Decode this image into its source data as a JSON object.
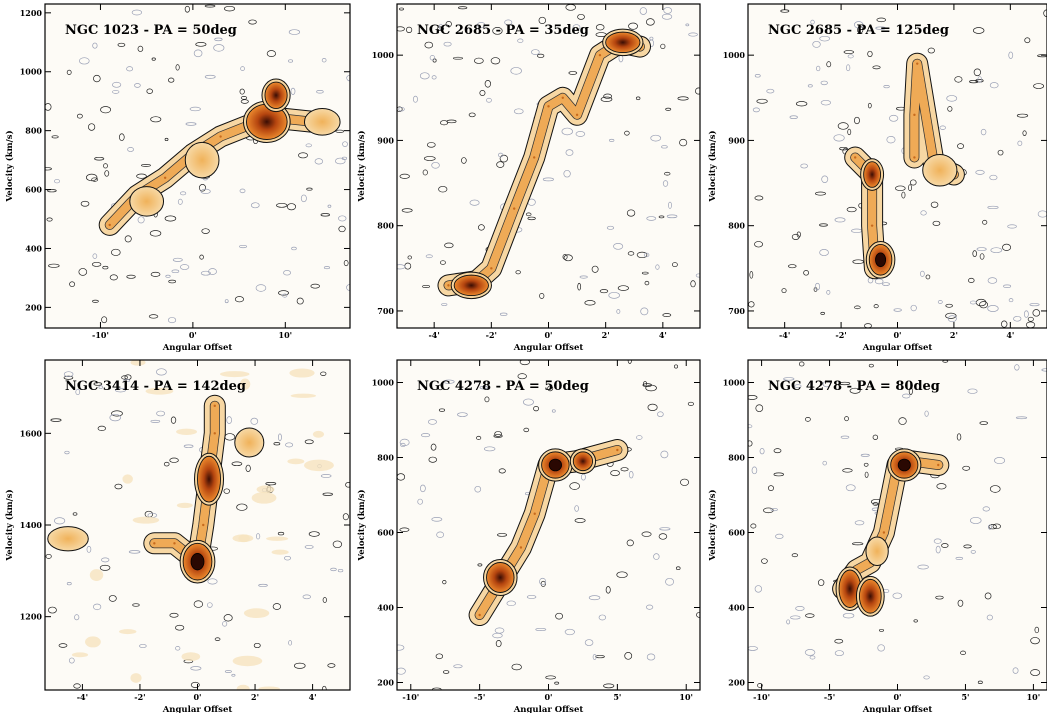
{
  "figure": {
    "panels": [
      {
        "title": "NGC 1023 - PA = 50deg",
        "xlabel": "Angular Offset",
        "ylabel": "Velocity (km/s)"
      },
      {
        "title": "NGC 2685 - PA = 35deg",
        "xlabel": "Angular Offset",
        "ylabel": "Velocity (km/s)"
      },
      {
        "title": "NGC 2685 - PA = 125deg",
        "xlabel": "Angular Offset",
        "ylabel": "Velocity (km/s)"
      },
      {
        "title": "NGC 3414 - PA = 142deg",
        "xlabel": "Angular Offset",
        "ylabel": "Velocity (km/s)"
      },
      {
        "title": "NGC 4278 - PA = 50deg",
        "xlabel": "Angular Offset",
        "ylabel": "Velocity (km/s)"
      },
      {
        "title": "NGC 4278 - PA = 80deg",
        "xlabel": "Angular Offset",
        "ylabel": "Velocity (km/s)"
      }
    ]
  },
  "chart_data": [
    {
      "type": "heatmap",
      "title": "NGC 1023 - PA = 50deg",
      "xlabel": "Angular Offset",
      "ylabel": "Velocity (km/s)",
      "xlim": [
        -16,
        17
      ],
      "ylim": [
        130,
        1230
      ],
      "xticks": [
        -10,
        0,
        10
      ],
      "xticklabels": [
        "-10'",
        "0'",
        "10'"
      ],
      "yticks": [
        200,
        400,
        600,
        800,
        1000,
        1200
      ],
      "yticklabels": [
        "200",
        "400",
        "600",
        "800",
        "1000",
        "1200"
      ],
      "ridge": [
        [
          -9,
          480
        ],
        [
          -6,
          580
        ],
        [
          -3,
          640
        ],
        [
          0,
          720
        ],
        [
          3,
          780
        ],
        [
          7,
          830
        ],
        [
          10,
          840
        ],
        [
          13,
          830
        ]
      ],
      "blobs": [
        [
          8,
          830,
          2.2,
          60,
          2
        ],
        [
          9,
          920,
          1.2,
          45,
          2
        ],
        [
          14,
          830,
          1.6,
          35,
          1
        ],
        [
          -5,
          560,
          1.5,
          40,
          1
        ],
        [
          1,
          700,
          1.5,
          50,
          1
        ]
      ]
    },
    {
      "type": "heatmap",
      "title": "NGC 2685 - PA = 35deg",
      "xlabel": "Angular Offset",
      "ylabel": "Velocity (km/s)",
      "xlim": [
        -5.3,
        5.3
      ],
      "ylim": [
        680,
        1060
      ],
      "xticks": [
        -4,
        -2,
        0,
        2,
        4
      ],
      "xticklabels": [
        "-4'",
        "-2'",
        "0'",
        "2'",
        "4'"
      ],
      "yticks": [
        700,
        800,
        900,
        1000
      ],
      "yticklabels": [
        "700",
        "800",
        "900",
        "1000"
      ],
      "ridge": [
        [
          -3.5,
          730
        ],
        [
          -2.5,
          735
        ],
        [
          -2,
          750
        ],
        [
          -1.2,
          820
        ],
        [
          -0.5,
          880
        ],
        [
          0,
          940
        ],
        [
          0.5,
          950
        ],
        [
          1,
          930
        ],
        [
          1.8,
          1000
        ],
        [
          2.5,
          1015
        ],
        [
          3.2,
          1010
        ]
      ],
      "blobs": [
        [
          -2.7,
          730,
          0.6,
          12,
          2
        ],
        [
          2.6,
          1015,
          0.6,
          12,
          2
        ]
      ]
    },
    {
      "type": "heatmap",
      "title": "NGC 2685 - PA = 125deg",
      "xlabel": "Angular Offset",
      "ylabel": "Velocity (km/s)",
      "xlim": [
        -5.3,
        5.3
      ],
      "ylim": [
        680,
        1060
      ],
      "xticks": [
        -4,
        -2,
        0,
        2,
        4
      ],
      "xticklabels": [
        "-4'",
        "-2'",
        "0'",
        "2'",
        "4'"
      ],
      "yticks": [
        700,
        800,
        900,
        1000
      ],
      "yticklabels": [
        "700",
        "800",
        "900",
        "1000"
      ],
      "ridge": [
        [
          -0.8,
          750
        ],
        [
          -0.9,
          800
        ],
        [
          -0.9,
          860
        ],
        [
          -1.5,
          880
        ]
      ],
      "ridge2": [
        [
          0.6,
          880
        ],
        [
          0.6,
          930
        ],
        [
          0.7,
          990
        ],
        [
          1.3,
          870
        ],
        [
          2,
          860
        ]
      ],
      "blobs": [
        [
          -0.6,
          760,
          0.4,
          18,
          3
        ],
        [
          -0.9,
          860,
          0.3,
          15,
          2
        ],
        [
          1.5,
          865,
          0.5,
          15,
          1
        ]
      ]
    },
    {
      "type": "heatmap",
      "title": "NGC 3414 - PA = 142deg",
      "xlabel": "Angular Offset",
      "ylabel": "Velocity (km/s)",
      "xlim": [
        -5.3,
        5.3
      ],
      "ylim": [
        1040,
        1760
      ],
      "xticks": [
        -4,
        -2,
        0,
        2,
        4
      ],
      "xticklabels": [
        "-4'",
        "-2'",
        "0'",
        "2'",
        "4'"
      ],
      "yticks": [
        1200,
        1400,
        1600
      ],
      "yticklabels": [
        "1200",
        "1400",
        "1600"
      ],
      "ridge": [
        [
          -1.5,
          1360
        ],
        [
          -0.8,
          1360
        ],
        [
          0,
          1320
        ],
        [
          0.2,
          1400
        ],
        [
          0.4,
          1500
        ],
        [
          0.6,
          1600
        ],
        [
          0.6,
          1660
        ]
      ],
      "blobs": [
        [
          0,
          1320,
          0.5,
          40,
          3
        ],
        [
          0.4,
          1500,
          0.4,
          50,
          2
        ],
        [
          1.8,
          1580,
          0.4,
          25,
          1
        ],
        [
          -4.5,
          1370,
          0.6,
          20,
          1
        ]
      ]
    },
    {
      "type": "heatmap",
      "title": "NGC 4278 - PA = 50deg",
      "xlabel": "Angular Offset",
      "ylabel": "Velocity (km/s)",
      "xlim": [
        -11,
        11
      ],
      "ylim": [
        180,
        1060
      ],
      "xticks": [
        -10,
        -5,
        0,
        5,
        10
      ],
      "xticklabels": [
        "-10'",
        "-5'",
        "0'",
        "5'",
        "10'"
      ],
      "yticks": [
        200,
        400,
        600,
        800,
        1000
      ],
      "yticklabels": [
        "200",
        "400",
        "600",
        "800",
        "1000"
      ],
      "ridge": [
        [
          -5,
          380
        ],
        [
          -3.5,
          470
        ],
        [
          -2,
          560
        ],
        [
          -1,
          650
        ],
        [
          0,
          780
        ],
        [
          2,
          790
        ],
        [
          3,
          800
        ],
        [
          5,
          820
        ]
      ],
      "blobs": [
        [
          0.5,
          780,
          1.0,
          35,
          3
        ],
        [
          2.5,
          790,
          0.7,
          25,
          2
        ],
        [
          -3.5,
          480,
          1.0,
          40,
          2
        ]
      ]
    },
    {
      "type": "heatmap",
      "title": "NGC 4278 - PA = 80deg",
      "xlabel": "Angular Offset",
      "ylabel": "Velocity (km/s)",
      "xlim": [
        -11,
        11
      ],
      "ylim": [
        180,
        1060
      ],
      "xticks": [
        -10,
        -5,
        0,
        5,
        10
      ],
      "xticklabels": [
        "-10'",
        "-5'",
        "0'",
        "5'",
        "10'"
      ],
      "yticks": [
        200,
        400,
        600,
        800,
        1000
      ],
      "yticklabels": [
        "200",
        "400",
        "600",
        "800",
        "1000"
      ],
      "ridge": [
        [
          -4,
          450
        ],
        [
          -3,
          500
        ],
        [
          -2,
          520
        ],
        [
          -1,
          600
        ],
        [
          0,
          780
        ],
        [
          1,
          790
        ],
        [
          3,
          780
        ]
      ],
      "blobs": [
        [
          0.5,
          780,
          1.0,
          35,
          3
        ],
        [
          -3.5,
          450,
          0.8,
          50,
          2
        ],
        [
          -2,
          430,
          0.8,
          45,
          2
        ],
        [
          -1.5,
          550,
          0.6,
          30,
          1
        ]
      ]
    }
  ]
}
